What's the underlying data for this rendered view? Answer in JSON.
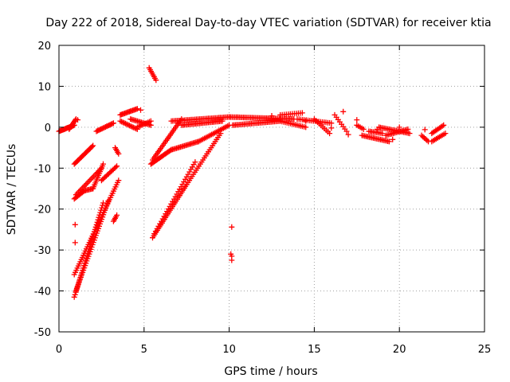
{
  "chart_data": {
    "type": "scatter",
    "title": "Day 222 of 2018, Sidereal Day-to-day VTEC variation (SDTVAR) for receiver ktia",
    "xlabel": "GPS time / hours",
    "ylabel": "SDTVAR / TECUs",
    "xlim": [
      0,
      25
    ],
    "ylim": [
      -50,
      20
    ],
    "xticks": [
      0,
      5,
      10,
      15,
      20,
      25
    ],
    "yticks": [
      -50,
      -40,
      -30,
      -20,
      -10,
      0,
      10,
      20
    ],
    "grid": true,
    "marker": "+",
    "color": "#ff0000",
    "series": [
      {
        "name": "SDTVAR",
        "segments": [
          {
            "x0": 0.0,
            "y0": -1.0,
            "x1": 0.9,
            "y1": 0.5,
            "n": 20
          },
          {
            "x0": 0.6,
            "y0": -0.5,
            "x1": 1.0,
            "y1": 2.0,
            "n": 10
          },
          {
            "x0": 0.9,
            "y0": -9.0,
            "x1": 2.0,
            "y1": -4.5,
            "n": 20
          },
          {
            "x0": 0.9,
            "y0": -17.5,
            "x1": 1.5,
            "y1": -15.5,
            "n": 10
          },
          {
            "x0": 1.5,
            "y0": -15.5,
            "x1": 2.0,
            "y1": -15.0,
            "n": 8
          },
          {
            "x0": 2.0,
            "y0": -15.0,
            "x1": 2.6,
            "y1": -9.0,
            "n": 14
          },
          {
            "x0": 1.0,
            "y0": -16.5,
            "x1": 2.5,
            "y1": -10.0,
            "n": 20
          },
          {
            "x0": 2.5,
            "y0": -13.0,
            "x1": 3.4,
            "y1": -9.5,
            "n": 14
          },
          {
            "x0": 2.2,
            "y0": -1.0,
            "x1": 3.2,
            "y1": 1.0,
            "n": 16
          },
          {
            "x0": 3.3,
            "y0": -5.0,
            "x1": 3.5,
            "y1": -6.5,
            "n": 5
          },
          {
            "x0": 0.9,
            "y0": -41.5,
            "x1": 2.6,
            "y1": -18.5,
            "n": 40
          },
          {
            "x0": 1.0,
            "y0": -40.0,
            "x1": 2.9,
            "y1": -18.0,
            "n": 40
          },
          {
            "x0": 0.9,
            "y0": -36.0,
            "x1": 3.5,
            "y1": -13.0,
            "n": 45
          },
          {
            "x0": 3.2,
            "y0": -23.0,
            "x1": 3.4,
            "y1": -21.5,
            "n": 5
          },
          {
            "x0": 3.6,
            "y0": 3.0,
            "x1": 4.6,
            "y1": 4.5,
            "n": 16
          },
          {
            "x0": 3.6,
            "y0": 1.5,
            "x1": 4.6,
            "y1": -0.5,
            "n": 14
          },
          {
            "x0": 4.2,
            "y0": 2.0,
            "x1": 5.4,
            "y1": 0.5,
            "n": 16
          },
          {
            "x0": 4.6,
            "y0": 0.0,
            "x1": 5.4,
            "y1": 1.5,
            "n": 10
          },
          {
            "x0": 5.3,
            "y0": 14.5,
            "x1": 5.7,
            "y1": 11.5,
            "n": 8
          },
          {
            "x0": 5.4,
            "y0": -9.0,
            "x1": 6.6,
            "y1": -5.5,
            "n": 20
          },
          {
            "x0": 6.6,
            "y0": -5.5,
            "x1": 8.2,
            "y1": -3.5,
            "n": 22
          },
          {
            "x0": 8.2,
            "y0": -3.5,
            "x1": 10.0,
            "y1": 0.5,
            "n": 22
          },
          {
            "x0": 5.5,
            "y0": -8.0,
            "x1": 7.2,
            "y1": 2.0,
            "n": 26
          },
          {
            "x0": 5.5,
            "y0": -27.0,
            "x1": 7.5,
            "y1": -14.0,
            "n": 30
          },
          {
            "x0": 7.5,
            "y0": -14.0,
            "x1": 9.5,
            "y1": -1.5,
            "n": 26
          },
          {
            "x0": 5.6,
            "y0": -26.0,
            "x1": 8.0,
            "y1": -8.5,
            "n": 30
          },
          {
            "x0": 6.6,
            "y0": 1.5,
            "x1": 10.0,
            "y1": 2.5,
            "n": 40
          },
          {
            "x0": 7.2,
            "y0": 0.5,
            "x1": 9.6,
            "y1": 1.5,
            "n": 30
          },
          {
            "x0": 10.0,
            "y0": 2.5,
            "x1": 13.8,
            "y1": 2.0,
            "n": 46
          },
          {
            "x0": 10.2,
            "y0": 0.5,
            "x1": 13.0,
            "y1": 1.5,
            "n": 34
          },
          {
            "x0": 13.0,
            "y0": 1.5,
            "x1": 14.5,
            "y1": 0.0,
            "n": 16
          },
          {
            "x0": 13.0,
            "y0": 3.0,
            "x1": 14.3,
            "y1": 3.5,
            "n": 12
          },
          {
            "x0": 14.0,
            "y0": 2.0,
            "x1": 16.0,
            "y1": 1.0,
            "n": 20
          },
          {
            "x0": 15.0,
            "y0": 2.0,
            "x1": 15.9,
            "y1": -1.5,
            "n": 10
          },
          {
            "x0": 16.2,
            "y0": 3.0,
            "x1": 16.9,
            "y1": -1.0,
            "n": 8
          },
          {
            "x0": 17.5,
            "y0": 0.5,
            "x1": 17.9,
            "y1": -0.5,
            "n": 5
          },
          {
            "x0": 17.8,
            "y0": -2.0,
            "x1": 19.4,
            "y1": -3.5,
            "n": 20
          },
          {
            "x0": 18.2,
            "y0": -1.0,
            "x1": 19.0,
            "y1": -1.5,
            "n": 10
          },
          {
            "x0": 18.8,
            "y0": 0.0,
            "x1": 20.6,
            "y1": -1.5,
            "n": 22
          },
          {
            "x0": 19.2,
            "y0": -2.0,
            "x1": 20.5,
            "y1": -0.5,
            "n": 16
          },
          {
            "x0": 21.3,
            "y0": -2.0,
            "x1": 21.7,
            "y1": -3.5,
            "n": 6
          },
          {
            "x0": 21.9,
            "y0": -1.5,
            "x1": 22.6,
            "y1": 0.5,
            "n": 10
          },
          {
            "x0": 21.9,
            "y0": -3.5,
            "x1": 22.7,
            "y1": -1.5,
            "n": 10
          }
        ],
        "points": [
          [
            0.95,
            -23.8
          ],
          [
            0.95,
            -28.2
          ],
          [
            10.15,
            -24.4
          ],
          [
            10.1,
            -31.0
          ],
          [
            10.15,
            -31.5
          ],
          [
            10.15,
            -32.5
          ],
          [
            14.5,
            1.5
          ],
          [
            16.7,
            3.8
          ],
          [
            17.5,
            1.8
          ],
          [
            16.0,
            -0.2
          ],
          [
            17.0,
            -1.8
          ],
          [
            18.7,
            -0.5
          ],
          [
            20.0,
            0.0
          ],
          [
            21.5,
            -0.6
          ],
          [
            1.1,
            1.8
          ],
          [
            4.8,
            4.2
          ],
          [
            12.5,
            2.8
          ],
          [
            19.6,
            -3.0
          ]
        ]
      }
    ]
  }
}
